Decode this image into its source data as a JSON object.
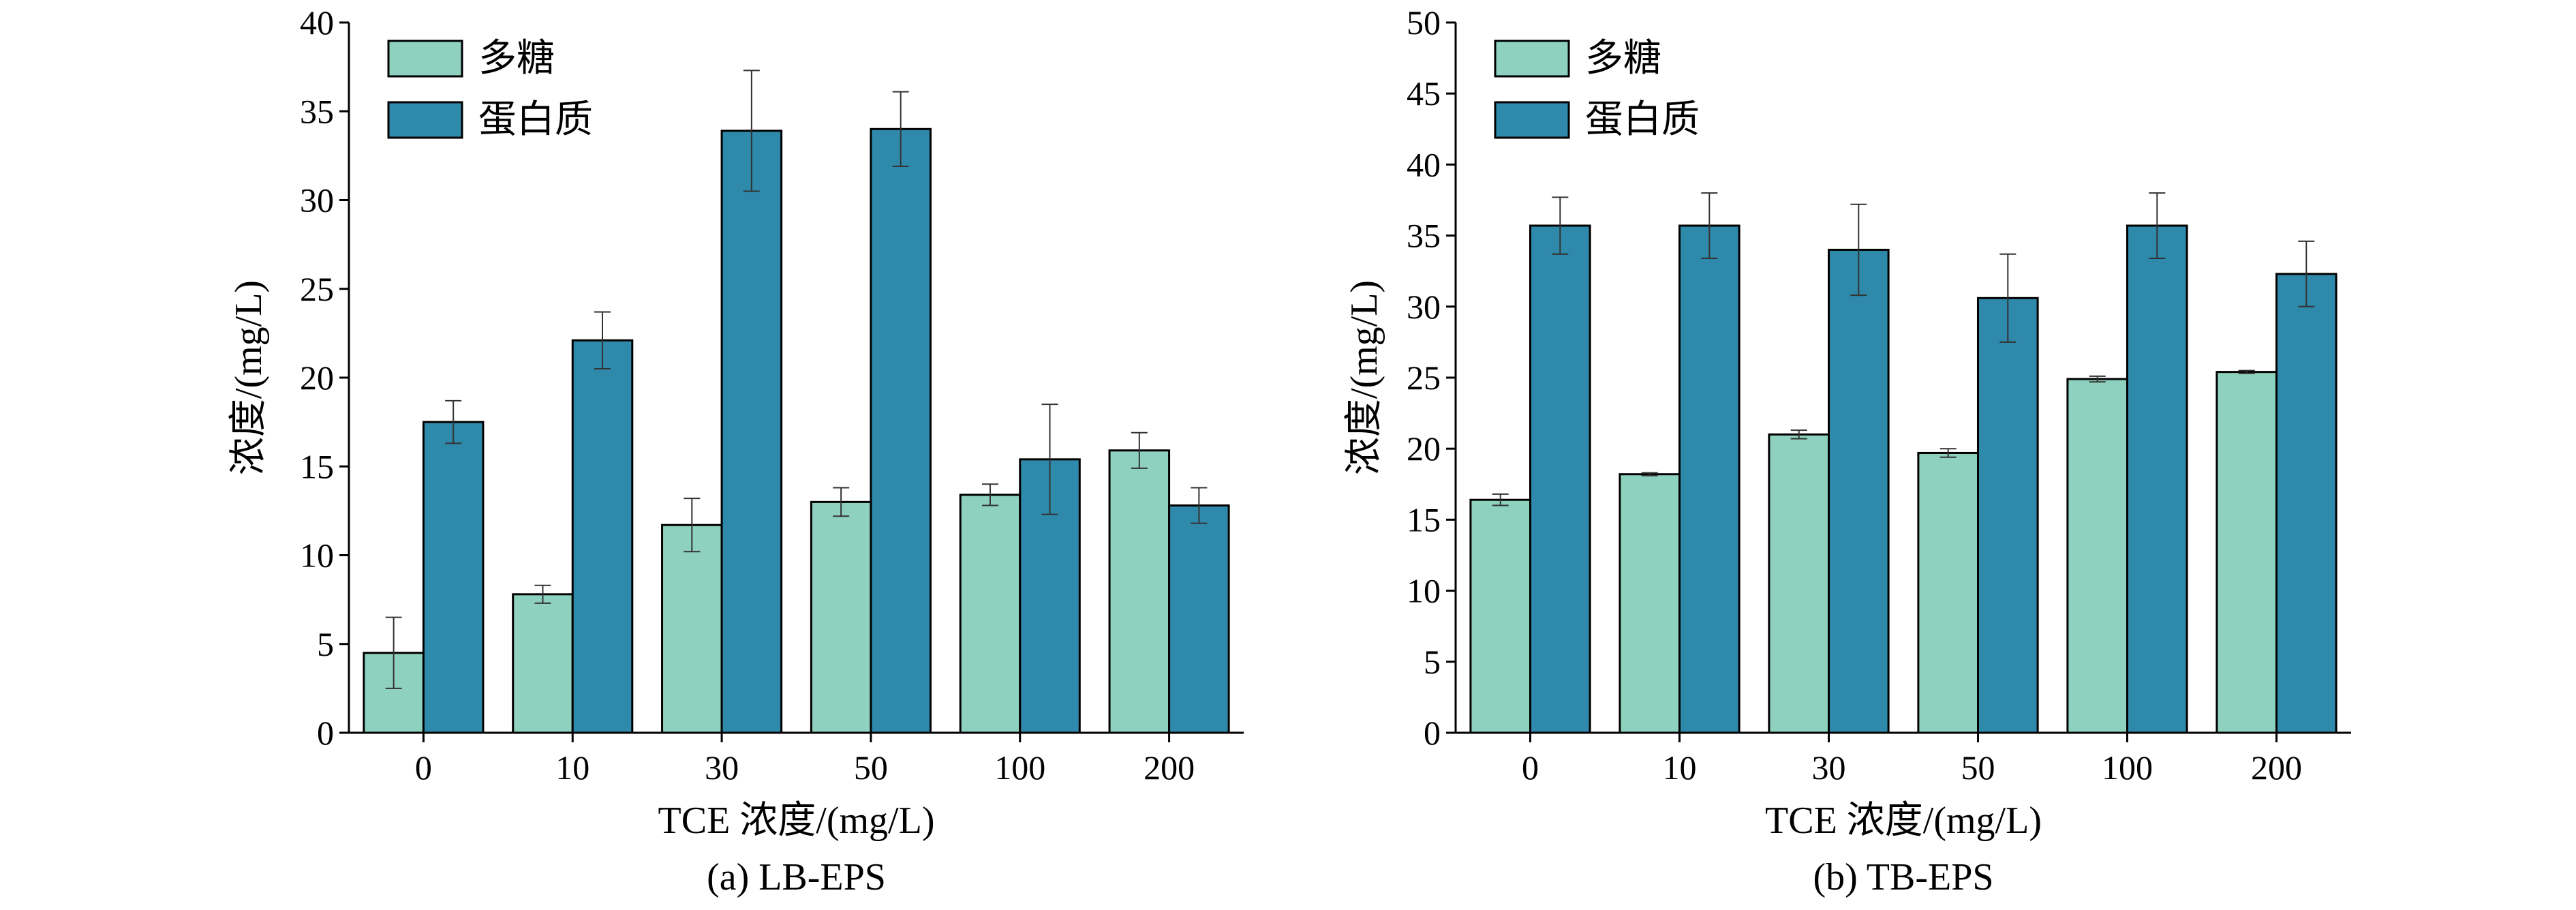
{
  "colors": {
    "polysaccharide": "#8ED1BE",
    "protein": "#2E89AA",
    "axis": "#000000"
  },
  "chart_data": [
    {
      "type": "bar",
      "caption": "(a) LB-EPS",
      "xlabel": "TCE 浓度/(mg/L)",
      "ylabel": "浓度/(mg/L)",
      "ylim": [
        0,
        40
      ],
      "yticks": [
        0,
        5,
        10,
        15,
        20,
        25,
        30,
        35,
        40
      ],
      "categories": [
        "0",
        "10",
        "30",
        "50",
        "100",
        "200"
      ],
      "legend_position": "top-left",
      "series": [
        {
          "name": "多糖",
          "color": "#8ED1BE",
          "values": [
            4.5,
            7.8,
            11.7,
            13.0,
            13.4,
            15.9
          ],
          "errors": [
            2.0,
            0.5,
            1.5,
            0.8,
            0.6,
            1.0
          ]
        },
        {
          "name": "蛋白质",
          "color": "#2E89AA",
          "values": [
            17.5,
            22.1,
            33.9,
            34.0,
            15.4,
            12.8
          ],
          "errors": [
            1.2,
            1.6,
            3.4,
            2.1,
            3.1,
            1.0
          ]
        }
      ]
    },
    {
      "type": "bar",
      "caption": "(b) TB-EPS",
      "xlabel": "TCE 浓度/(mg/L)",
      "ylabel": "浓度/(mg/L)",
      "ylim": [
        0,
        50
      ],
      "yticks": [
        0,
        5,
        10,
        15,
        20,
        25,
        30,
        35,
        40,
        45,
        50
      ],
      "categories": [
        "0",
        "10",
        "30",
        "50",
        "100",
        "200"
      ],
      "legend_position": "top-left",
      "series": [
        {
          "name": "多糖",
          "color": "#8ED1BE",
          "values": [
            16.4,
            18.2,
            21.0,
            19.7,
            24.9,
            25.4
          ],
          "errors": [
            0.4,
            0.1,
            0.3,
            0.3,
            0.2,
            0.1
          ]
        },
        {
          "name": "蛋白质",
          "color": "#2E89AA",
          "values": [
            35.7,
            35.7,
            34.0,
            30.6,
            35.7,
            32.3
          ],
          "errors": [
            2.0,
            2.3,
            3.2,
            3.1,
            2.3,
            2.3
          ]
        }
      ]
    }
  ]
}
